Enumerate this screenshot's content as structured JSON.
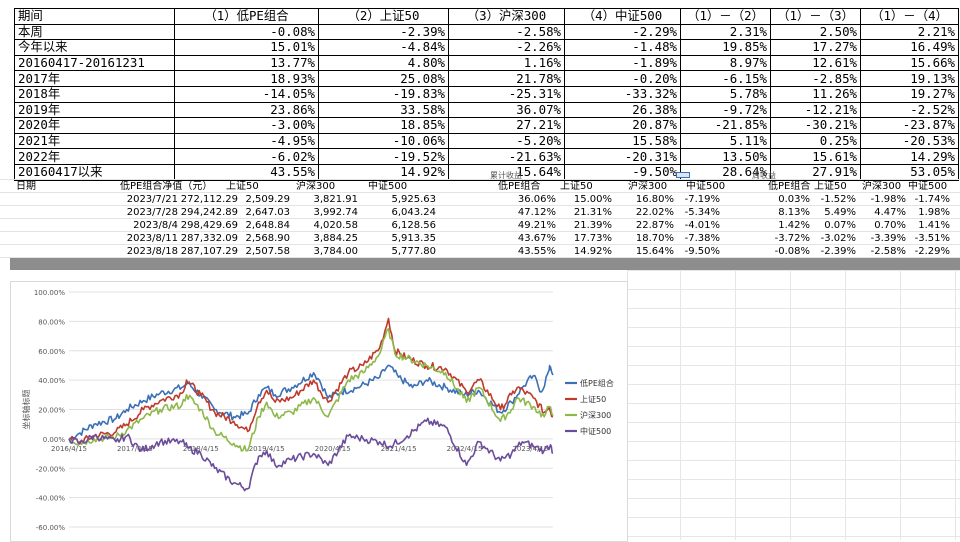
{
  "summary": {
    "headers": [
      "期间",
      "（1）低PE组合",
      "（2）上证50",
      "（3）沪深300",
      "（4）中证500",
      "（1）－（2）",
      "（1）－（3）",
      "（1）－（4）"
    ],
    "rows": [
      [
        "本周",
        "-0.08%",
        "-2.39%",
        "-2.58%",
        "-2.29%",
        "2.31%",
        "2.50%",
        "2.21%"
      ],
      [
        "今年以来",
        "15.01%",
        "-4.84%",
        "-2.26%",
        "-1.48%",
        "19.85%",
        "17.27%",
        "16.49%"
      ],
      [
        "20160417-20161231",
        "13.77%",
        "4.80%",
        "1.16%",
        "-1.89%",
        "8.97%",
        "12.61%",
        "15.66%"
      ],
      [
        "2017年",
        "18.93%",
        "25.08%",
        "21.78%",
        "-0.20%",
        "-6.15%",
        "-2.85%",
        "19.13%"
      ],
      [
        "2018年",
        "-14.05%",
        "-19.83%",
        "-25.31%",
        "-33.32%",
        "5.78%",
        "11.26%",
        "19.27%"
      ],
      [
        "2019年",
        "23.86%",
        "33.58%",
        "36.07%",
        "26.38%",
        "-9.72%",
        "-12.21%",
        "-2.52%"
      ],
      [
        "2020年",
        "-3.00%",
        "18.85%",
        "27.21%",
        "20.87%",
        "-21.85%",
        "-30.21%",
        "-23.87%"
      ],
      [
        "2021年",
        "-4.95%",
        "-10.06%",
        "-5.20%",
        "15.58%",
        "5.11%",
        "0.25%",
        "-20.53%"
      ],
      [
        "2022年",
        "-6.02%",
        "-19.52%",
        "-21.63%",
        "-20.31%",
        "13.50%",
        "15.61%",
        "14.29%"
      ],
      [
        "20160417以来",
        "43.55%",
        "14.92%",
        "15.64%",
        "-9.50%",
        "28.64%",
        "27.91%",
        "53.05%"
      ]
    ]
  },
  "weekly": {
    "stub_cumulative": "累计收益",
    "stub_weekly": "周收益",
    "nav_headers": [
      "日期",
      "低PE组合净值（元）",
      "上证50",
      "沪深300",
      "中证500"
    ],
    "cum_headers": [
      "低PE组合",
      "上证50",
      "沪深300",
      "中证500"
    ],
    "wk_headers": [
      "低PE组合",
      "上证50",
      "沪深300",
      "中证500"
    ],
    "rows": [
      {
        "date": "2023/7/21",
        "nav": [
          "272,112.29",
          "2,509.29",
          "3,821.91",
          "5,925.63"
        ],
        "cum": [
          "36.06%",
          "15.00%",
          "16.80%",
          "-7.19%"
        ],
        "wk": [
          "0.03%",
          "-1.52%",
          "-1.98%",
          "-1.74%"
        ]
      },
      {
        "date": "2023/7/28",
        "nav": [
          "294,242.89",
          "2,647.03",
          "3,992.74",
          "6,043.24"
        ],
        "cum": [
          "47.12%",
          "21.31%",
          "22.02%",
          "-5.34%"
        ],
        "wk": [
          "8.13%",
          "5.49%",
          "4.47%",
          "1.98%"
        ]
      },
      {
        "date": "2023/8/4",
        "nav": [
          "298,429.69",
          "2,648.84",
          "4,020.58",
          "6,128.56"
        ],
        "cum": [
          "49.21%",
          "21.39%",
          "22.87%",
          "-4.01%"
        ],
        "wk": [
          "1.42%",
          "0.07%",
          "0.70%",
          "1.41%"
        ]
      },
      {
        "date": "2023/8/11",
        "nav": [
          "287,332.09",
          "2,568.90",
          "3,884.25",
          "5,913.35"
        ],
        "cum": [
          "43.67%",
          "17.73%",
          "18.70%",
          "-7.38%"
        ],
        "wk": [
          "-3.72%",
          "-3.02%",
          "-3.39%",
          "-3.51%"
        ]
      },
      {
        "date": "2023/8/18",
        "nav": [
          "287,107.29",
          "2,507.58",
          "3,784.00",
          "5,777.80"
        ],
        "cum": [
          "43.55%",
          "14.92%",
          "15.64%",
          "-9.50%"
        ],
        "wk": [
          "-0.08%",
          "-2.39%",
          "-2.58%",
          "-2.29%"
        ]
      }
    ]
  },
  "chart_data": {
    "type": "line",
    "ylabel": "坐标轴标题",
    "ylim": [
      -60,
      100
    ],
    "y_ticks": [
      "100.00%",
      "80.00%",
      "60.00%",
      "40.00%",
      "20.00%",
      "0.00%",
      "-20.00%",
      "-40.00%",
      "-60.00%"
    ],
    "x_ticks": [
      "2016/4/15",
      "2017/4/15",
      "2018/4/15",
      "2019/4/15",
      "2020/4/15",
      "2021/4/15",
      "2022/4/15",
      "2023/4/15"
    ],
    "x_range": [
      "2016-04-15",
      "2023-08-18"
    ],
    "legend_position": "right",
    "grid": true,
    "series": [
      {
        "name": "低PE组合",
        "color": "#3b6fb6",
        "points": [
          [
            "2016-04-15",
            0
          ],
          [
            "2016-06-15",
            4
          ],
          [
            "2016-09-01",
            10
          ],
          [
            "2016-12-31",
            13.8
          ],
          [
            "2017-03-01",
            20
          ],
          [
            "2017-06-01",
            26
          ],
          [
            "2017-09-01",
            31
          ],
          [
            "2017-12-31",
            35
          ],
          [
            "2018-02-01",
            38
          ],
          [
            "2018-04-15",
            30
          ],
          [
            "2018-07-01",
            20
          ],
          [
            "2018-10-15",
            15
          ],
          [
            "2018-12-31",
            17
          ],
          [
            "2019-03-01",
            30
          ],
          [
            "2019-04-15",
            35
          ],
          [
            "2019-06-01",
            30
          ],
          [
            "2019-09-01",
            35
          ],
          [
            "2019-12-31",
            45
          ],
          [
            "2020-02-01",
            40
          ],
          [
            "2020-03-20",
            28
          ],
          [
            "2020-06-01",
            32
          ],
          [
            "2020-09-01",
            35
          ],
          [
            "2020-12-31",
            42
          ],
          [
            "2021-02-15",
            50
          ],
          [
            "2021-04-15",
            42
          ],
          [
            "2021-07-01",
            35
          ],
          [
            "2021-09-15",
            40
          ],
          [
            "2021-12-31",
            35
          ],
          [
            "2022-04-15",
            30
          ],
          [
            "2022-07-01",
            33
          ],
          [
            "2022-10-31",
            18
          ],
          [
            "2022-12-31",
            25
          ],
          [
            "2023-03-01",
            35
          ],
          [
            "2023-05-01",
            43
          ],
          [
            "2023-06-15",
            32
          ],
          [
            "2023-07-28",
            47
          ],
          [
            "2023-08-04",
            49
          ],
          [
            "2023-08-18",
            43.5
          ]
        ]
      },
      {
        "name": "上证50",
        "color": "#c0392b",
        "points": [
          [
            "2016-04-15",
            0
          ],
          [
            "2016-06-15",
            -2
          ],
          [
            "2016-09-01",
            2
          ],
          [
            "2016-12-31",
            4.8
          ],
          [
            "2017-03-01",
            10
          ],
          [
            "2017-06-01",
            20
          ],
          [
            "2017-09-01",
            26
          ],
          [
            "2017-12-31",
            31
          ],
          [
            "2018-01-26",
            40
          ],
          [
            "2018-04-15",
            30
          ],
          [
            "2018-07-01",
            18
          ],
          [
            "2018-10-15",
            12
          ],
          [
            "2018-12-31",
            5
          ],
          [
            "2019-03-01",
            25
          ],
          [
            "2019-04-15",
            33
          ],
          [
            "2019-06-01",
            25
          ],
          [
            "2019-09-01",
            28
          ],
          [
            "2019-12-31",
            40
          ],
          [
            "2020-03-20",
            25
          ],
          [
            "2020-07-10",
            45
          ],
          [
            "2020-10-01",
            50
          ],
          [
            "2020-12-31",
            62
          ],
          [
            "2021-02-18",
            82
          ],
          [
            "2021-03-25",
            60
          ],
          [
            "2021-06-01",
            55
          ],
          [
            "2021-09-15",
            50
          ],
          [
            "2021-12-31",
            48
          ],
          [
            "2022-04-26",
            32
          ],
          [
            "2022-07-05",
            40
          ],
          [
            "2022-10-31",
            20
          ],
          [
            "2022-12-31",
            30
          ],
          [
            "2023-02-01",
            35
          ],
          [
            "2023-05-01",
            28
          ],
          [
            "2023-06-30",
            18
          ],
          [
            "2023-07-28",
            21
          ],
          [
            "2023-08-18",
            15
          ]
        ]
      },
      {
        "name": "沪深300",
        "color": "#8db84a",
        "points": [
          [
            "2016-04-15",
            0
          ],
          [
            "2016-06-15",
            -3
          ],
          [
            "2016-09-01",
            0
          ],
          [
            "2016-12-31",
            1.2
          ],
          [
            "2017-03-01",
            6
          ],
          [
            "2017-06-01",
            14
          ],
          [
            "2017-09-01",
            20
          ],
          [
            "2017-12-31",
            23
          ],
          [
            "2018-01-26",
            30
          ],
          [
            "2018-04-15",
            20
          ],
          [
            "2018-07-01",
            5
          ],
          [
            "2018-10-15",
            -3
          ],
          [
            "2018-12-31",
            -8
          ],
          [
            "2019-03-01",
            15
          ],
          [
            "2019-04-15",
            25
          ],
          [
            "2019-06-01",
            15
          ],
          [
            "2019-09-01",
            18
          ],
          [
            "2019-12-31",
            28
          ],
          [
            "2020-03-20",
            15
          ],
          [
            "2020-07-10",
            40
          ],
          [
            "2020-10-01",
            45
          ],
          [
            "2020-12-31",
            58
          ],
          [
            "2021-02-18",
            75
          ],
          [
            "2021-03-25",
            58
          ],
          [
            "2021-06-01",
            55
          ],
          [
            "2021-09-15",
            50
          ],
          [
            "2021-12-31",
            45
          ],
          [
            "2022-04-26",
            25
          ],
          [
            "2022-07-05",
            35
          ],
          [
            "2022-10-31",
            12
          ],
          [
            "2022-12-31",
            20
          ],
          [
            "2023-02-01",
            28
          ],
          [
            "2023-05-01",
            22
          ],
          [
            "2023-06-30",
            15
          ],
          [
            "2023-07-28",
            22
          ],
          [
            "2023-08-18",
            15.6
          ]
        ]
      },
      {
        "name": "中证500",
        "color": "#6b4c9a",
        "points": [
          [
            "2016-04-15",
            0
          ],
          [
            "2016-06-15",
            -3
          ],
          [
            "2016-09-01",
            2
          ],
          [
            "2016-12-31",
            -1.9
          ],
          [
            "2017-03-01",
            2
          ],
          [
            "2017-05-20",
            -8
          ],
          [
            "2017-09-01",
            -2
          ],
          [
            "2017-12-31",
            -2
          ],
          [
            "2018-02-01",
            -6
          ],
          [
            "2018-04-15",
            -10
          ],
          [
            "2018-07-01",
            -20
          ],
          [
            "2018-10-15",
            -30
          ],
          [
            "2018-12-31",
            -34
          ],
          [
            "2019-03-01",
            -12
          ],
          [
            "2019-04-15",
            -8
          ],
          [
            "2019-06-01",
            -18
          ],
          [
            "2019-09-01",
            -14
          ],
          [
            "2019-12-31",
            -10
          ],
          [
            "2020-03-20",
            -18
          ],
          [
            "2020-07-10",
            2
          ],
          [
            "2020-10-01",
            0
          ],
          [
            "2020-12-31",
            -2
          ],
          [
            "2021-03-01",
            -5
          ],
          [
            "2021-06-01",
            2
          ],
          [
            "2021-09-15",
            12
          ],
          [
            "2021-12-31",
            8
          ],
          [
            "2022-04-26",
            -18
          ],
          [
            "2022-07-05",
            -2
          ],
          [
            "2022-10-31",
            -15
          ],
          [
            "2022-12-31",
            -10
          ],
          [
            "2023-03-01",
            -2
          ],
          [
            "2023-05-01",
            -5
          ],
          [
            "2023-06-30",
            -8
          ],
          [
            "2023-08-04",
            -4
          ],
          [
            "2023-08-18",
            -9.5
          ]
        ]
      }
    ]
  }
}
